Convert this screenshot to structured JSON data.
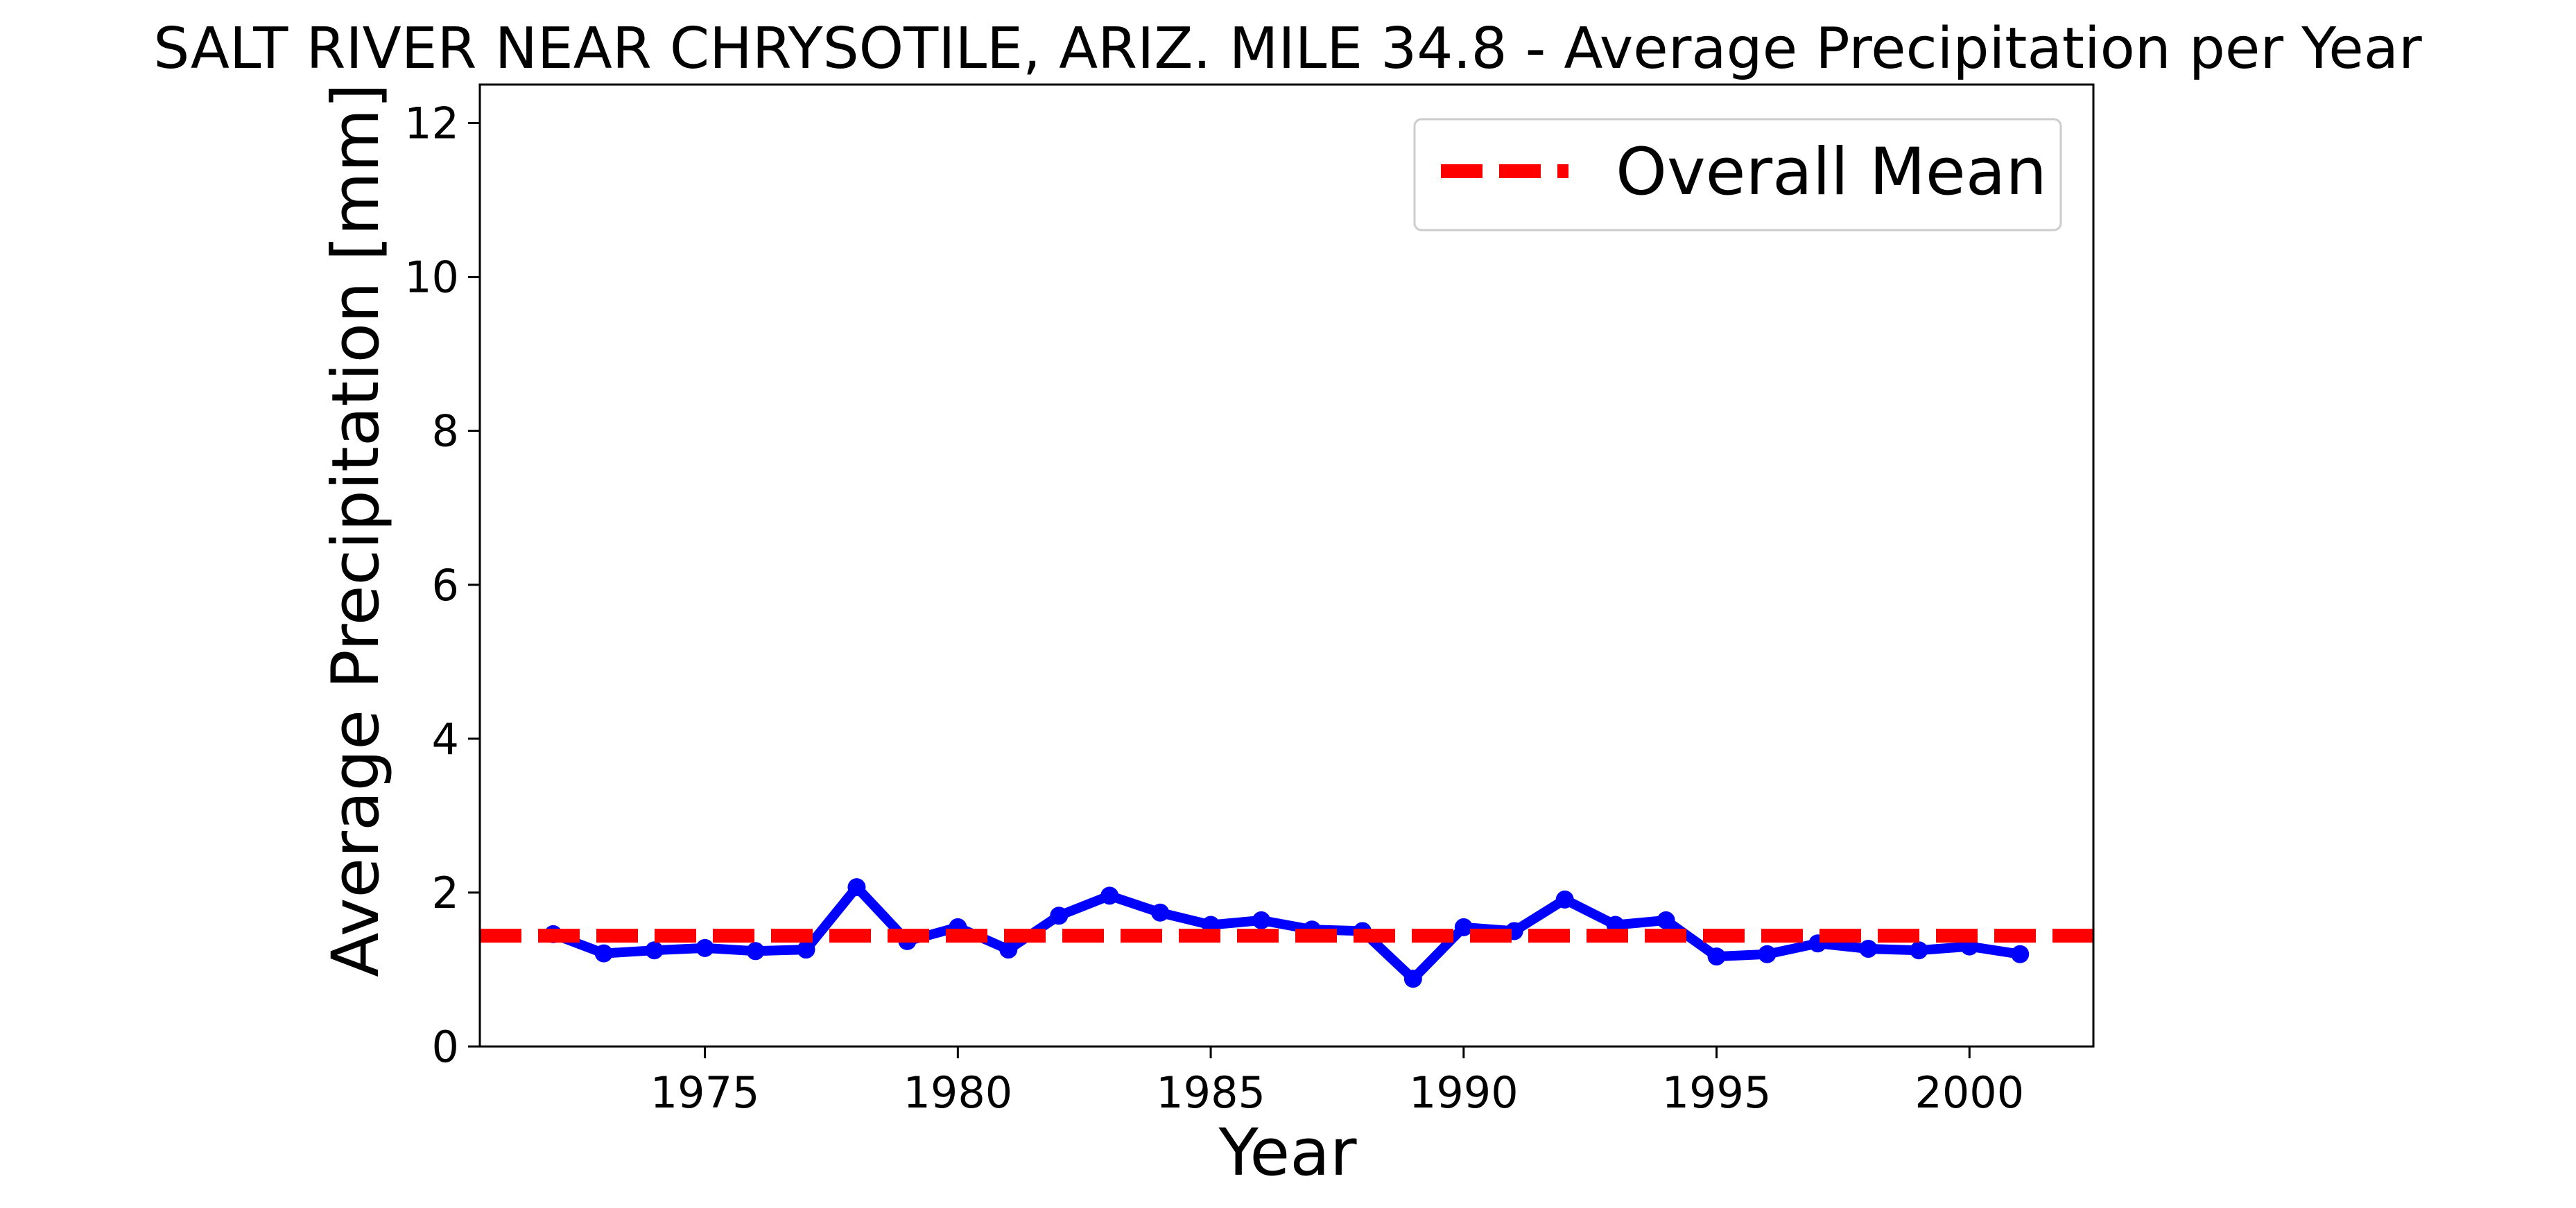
{
  "chart_data": {
    "type": "line",
    "title": "SALT RIVER NEAR CHRYSOTILE, ARIZ. MILE 34.8 - Average Precipitation per Year",
    "xlabel": "Year",
    "ylabel": "Average Precipitation [mm]",
    "xlim": [
      1970.55,
      2002.45
    ],
    "ylim": [
      0,
      12.5
    ],
    "x_ticks": [
      1975,
      1980,
      1985,
      1990,
      1995,
      2000
    ],
    "y_ticks": [
      0,
      2,
      4,
      6,
      8,
      10,
      12
    ],
    "grid": false,
    "legend_position": "top-right",
    "colors": {
      "series": "#0000ff",
      "mean": "#ff0000"
    },
    "series": [
      {
        "x": [
          1972,
          1973,
          1974,
          1975,
          1976,
          1977,
          1978,
          1979,
          1980,
          1981,
          1982,
          1983,
          1984,
          1985,
          1986,
          1987,
          1988,
          1989,
          1990,
          1991,
          1992,
          1993,
          1994,
          1995,
          1996,
          1997,
          1998,
          1999,
          2000,
          2001
        ],
        "values": [
          1.46,
          1.21,
          1.25,
          1.28,
          1.24,
          1.26,
          2.07,
          1.37,
          1.55,
          1.26,
          1.7,
          1.96,
          1.74,
          1.58,
          1.64,
          1.52,
          1.5,
          0.88,
          1.55,
          1.5,
          1.91,
          1.58,
          1.64,
          1.17,
          1.2,
          1.34,
          1.27,
          1.25,
          1.3,
          1.2
        ]
      }
    ],
    "reference_lines": [
      {
        "name": "Overall Mean",
        "value": 1.44,
        "style": "dashed"
      }
    ]
  }
}
